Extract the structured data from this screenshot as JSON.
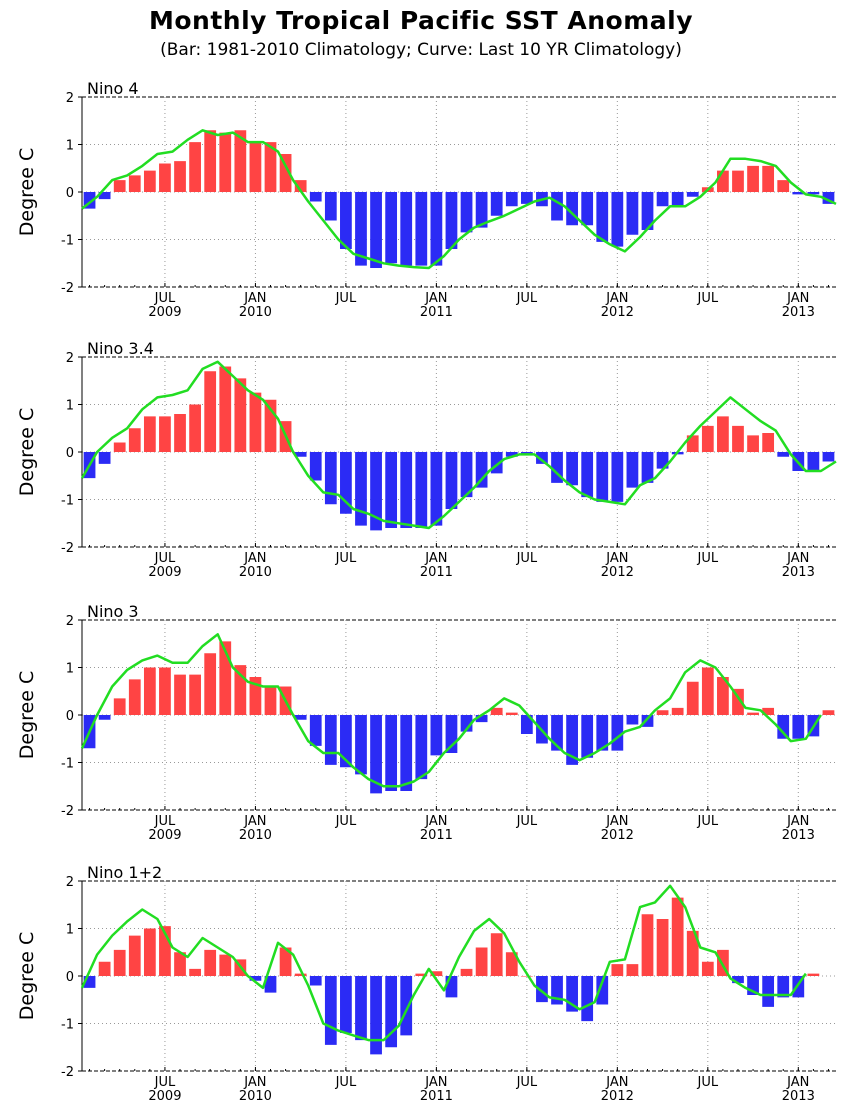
{
  "title": "Monthly Tropical Pacific SST Anomaly",
  "subtitle": "(Bar: 1981-2010 Climatology; Curve: Last 10 YR Climatology)",
  "colors": {
    "positive_bar": "#ff4444",
    "negative_bar": "#2b2bf5",
    "curve": "#22dd22",
    "grid": "#999999",
    "axis": "#000000"
  },
  "chart_data": [
    {
      "type": "bar",
      "panel_label": "Nino 4",
      "ylabel": "Degree C",
      "ylim": [
        -2,
        2
      ],
      "yticks": [
        -2,
        -1,
        0,
        1,
        2
      ],
      "grid": true,
      "x_start": "2009-02",
      "x_end": "2013-03",
      "xticks": [
        {
          "month": "2009-07",
          "label": "JUL",
          "year_label": "2009"
        },
        {
          "month": "2010-01",
          "label": "JAN",
          "year_label": "2010"
        },
        {
          "month": "2010-07",
          "label": "JUL",
          "year_label": ""
        },
        {
          "month": "2011-01",
          "label": "JAN",
          "year_label": "2011"
        },
        {
          "month": "2011-07",
          "label": "JUL",
          "year_label": ""
        },
        {
          "month": "2012-01",
          "label": "JAN",
          "year_label": "2012"
        },
        {
          "month": "2012-07",
          "label": "JUL",
          "year_label": ""
        },
        {
          "month": "2013-01",
          "label": "JAN",
          "year_label": "2013"
        }
      ],
      "series": [
        {
          "values": [
            -0.35,
            -0.15,
            0.25,
            0.35,
            0.45,
            0.6,
            0.65,
            1.05,
            1.3,
            1.25,
            1.3,
            1.05,
            1.05,
            0.8,
            0.25,
            -0.2,
            -0.6,
            -1.2,
            -1.55,
            -1.6,
            -1.5,
            -1.55,
            -1.55,
            -1.55,
            -1.2,
            -0.85,
            -0.75,
            -0.5,
            -0.3,
            -0.25,
            -0.3,
            -0.6,
            -0.7,
            -0.7,
            -1.05,
            -1.15,
            -0.9,
            -0.8,
            -0.3,
            -0.3,
            -0.1,
            0.1,
            0.45,
            0.45,
            0.55,
            0.55,
            0.25,
            -0.05,
            -0.05,
            -0.25
          ]
        },
        {
          "values": [
            -0.35,
            -0.1,
            0.25,
            0.35,
            0.55,
            0.8,
            0.85,
            1.1,
            1.3,
            1.2,
            1.25,
            1.05,
            1.05,
            0.85,
            0.25,
            -0.2,
            -0.6,
            -1.0,
            -1.3,
            -1.4,
            -1.5,
            -1.55,
            -1.58,
            -1.6,
            -1.35,
            -1.0,
            -0.75,
            -0.62,
            -0.5,
            -0.35,
            -0.2,
            -0.12,
            -0.3,
            -0.6,
            -0.9,
            -1.1,
            -1.25,
            -0.95,
            -0.6,
            -0.3,
            -0.3,
            -0.1,
            0.2,
            0.7,
            0.7,
            0.65,
            0.55,
            0.2,
            -0.05,
            -0.1,
            -0.25
          ]
        }
      ]
    },
    {
      "type": "bar",
      "panel_label": "Nino 3.4",
      "ylabel": "Degree C",
      "ylim": [
        -2,
        2
      ],
      "yticks": [
        -2,
        -1,
        0,
        1,
        2
      ],
      "grid": true,
      "x_start": "2009-02",
      "x_end": "2013-03",
      "xticks": [
        {
          "month": "2009-07",
          "label": "JUL",
          "year_label": "2009"
        },
        {
          "month": "2010-01",
          "label": "JAN",
          "year_label": "2010"
        },
        {
          "month": "2010-07",
          "label": "JUL",
          "year_label": ""
        },
        {
          "month": "2011-01",
          "label": "JAN",
          "year_label": "2011"
        },
        {
          "month": "2011-07",
          "label": "JUL",
          "year_label": ""
        },
        {
          "month": "2012-01",
          "label": "JAN",
          "year_label": "2012"
        },
        {
          "month": "2012-07",
          "label": "JUL",
          "year_label": ""
        },
        {
          "month": "2013-01",
          "label": "JAN",
          "year_label": "2013"
        }
      ],
      "series": [
        {
          "values": [
            -0.55,
            -0.25,
            0.2,
            0.5,
            0.75,
            0.75,
            0.8,
            1.0,
            1.7,
            1.8,
            1.55,
            1.25,
            1.1,
            0.65,
            -0.1,
            -0.6,
            -1.1,
            -1.3,
            -1.55,
            -1.65,
            -1.6,
            -1.6,
            -1.6,
            -1.55,
            -1.2,
            -0.95,
            -0.75,
            -0.45,
            -0.1,
            -0.05,
            -0.25,
            -0.65,
            -0.7,
            -0.95,
            -1.05,
            -1.05,
            -0.75,
            -0.65,
            -0.35,
            -0.05,
            0.35,
            0.55,
            0.75,
            0.55,
            0.35,
            0.4,
            -0.1,
            -0.4,
            -0.4,
            -0.2
          ]
        },
        {
          "values": [
            -0.55,
            0.0,
            0.3,
            0.5,
            0.9,
            1.15,
            1.2,
            1.3,
            1.75,
            1.9,
            1.6,
            1.3,
            1.1,
            0.7,
            0.0,
            -0.5,
            -0.85,
            -0.9,
            -1.2,
            -1.3,
            -1.45,
            -1.5,
            -1.55,
            -1.6,
            -1.35,
            -1.05,
            -0.75,
            -0.4,
            -0.15,
            -0.05,
            -0.05,
            -0.3,
            -0.6,
            -0.85,
            -1.0,
            -1.05,
            -1.1,
            -0.7,
            -0.55,
            -0.2,
            0.2,
            0.55,
            0.85,
            1.15,
            0.9,
            0.65,
            0.45,
            -0.05,
            -0.4,
            -0.4,
            -0.2
          ]
        }
      ]
    },
    {
      "type": "bar",
      "panel_label": "Nino 3",
      "ylabel": "Degree C",
      "ylim": [
        -2,
        2
      ],
      "yticks": [
        -2,
        -1,
        0,
        1,
        2
      ],
      "grid": true,
      "x_start": "2009-02",
      "x_end": "2013-03",
      "xticks": [
        {
          "month": "2009-07",
          "label": "JUL",
          "year_label": "2009"
        },
        {
          "month": "2010-01",
          "label": "JAN",
          "year_label": "2010"
        },
        {
          "month": "2010-07",
          "label": "JUL",
          "year_label": ""
        },
        {
          "month": "2011-01",
          "label": "JAN",
          "year_label": "2011"
        },
        {
          "month": "2011-07",
          "label": "JUL",
          "year_label": ""
        },
        {
          "month": "2012-01",
          "label": "JAN",
          "year_label": "2012"
        },
        {
          "month": "2012-07",
          "label": "JUL",
          "year_label": ""
        },
        {
          "month": "2013-01",
          "label": "JAN",
          "year_label": "2013"
        }
      ],
      "series": [
        {
          "values": [
            -0.7,
            -0.1,
            0.35,
            0.75,
            1.0,
            1.0,
            0.85,
            0.85,
            1.3,
            1.55,
            1.05,
            0.8,
            0.6,
            0.6,
            -0.1,
            -0.65,
            -1.05,
            -1.1,
            -1.25,
            -1.65,
            -1.6,
            -1.6,
            -1.35,
            -0.85,
            -0.8,
            -0.35,
            -0.15,
            0.15,
            0.05,
            -0.4,
            -0.6,
            -0.75,
            -1.05,
            -0.9,
            -0.75,
            -0.75,
            -0.2,
            -0.25,
            0.1,
            0.15,
            0.7,
            1.0,
            0.8,
            0.55,
            0.05,
            0.15,
            -0.5,
            -0.5,
            -0.45,
            0.1
          ]
        },
        {
          "values": [
            -0.7,
            0.0,
            0.6,
            0.95,
            1.15,
            1.25,
            1.1,
            1.1,
            1.45,
            1.7,
            1.0,
            0.7,
            0.6,
            0.6,
            0.0,
            -0.55,
            -0.8,
            -0.8,
            -1.1,
            -1.35,
            -1.5,
            -1.5,
            -1.4,
            -1.2,
            -0.8,
            -0.5,
            -0.1,
            0.1,
            0.35,
            0.2,
            -0.15,
            -0.5,
            -0.8,
            -0.95,
            -0.8,
            -0.6,
            -0.35,
            -0.25,
            0.1,
            0.35,
            0.9,
            1.15,
            1.0,
            0.6,
            0.15,
            0.1,
            -0.2,
            -0.55,
            -0.5,
            0.0
          ]
        }
      ]
    },
    {
      "type": "bar",
      "panel_label": "Nino 1+2",
      "ylabel": "Degree C",
      "ylim": [
        -2,
        2
      ],
      "yticks": [
        -2,
        -1,
        0,
        1,
        2
      ],
      "grid": true,
      "x_start": "2009-02",
      "x_end": "2013-03",
      "xticks": [
        {
          "month": "2009-07",
          "label": "JUL",
          "year_label": "2009"
        },
        {
          "month": "2010-01",
          "label": "JAN",
          "year_label": "2010"
        },
        {
          "month": "2010-07",
          "label": "JUL",
          "year_label": ""
        },
        {
          "month": "2011-01",
          "label": "JAN",
          "year_label": "2011"
        },
        {
          "month": "2011-07",
          "label": "JUL",
          "year_label": ""
        },
        {
          "month": "2012-01",
          "label": "JAN",
          "year_label": "2012"
        },
        {
          "month": "2012-07",
          "label": "JUL",
          "year_label": ""
        },
        {
          "month": "2013-01",
          "label": "JAN",
          "year_label": "2013"
        }
      ],
      "series": [
        {
          "values": [
            -0.25,
            0.3,
            0.55,
            0.85,
            1.0,
            1.05,
            0.5,
            0.15,
            0.55,
            0.45,
            0.35,
            -0.1,
            -0.35,
            0.6,
            0.05,
            -0.2,
            -1.45,
            -1.2,
            -1.35,
            -1.65,
            -1.5,
            -1.25,
            0.05,
            0.1,
            -0.45,
            0.15,
            0.6,
            0.9,
            0.5,
            0.0,
            -0.55,
            -0.6,
            -0.75,
            -0.95,
            -0.6,
            0.25,
            0.25,
            1.3,
            1.2,
            1.65,
            0.95,
            0.3,
            0.55,
            -0.15,
            -0.4,
            -0.65,
            -0.45,
            -0.45,
            0.05
          ]
        },
        {
          "values": [
            -0.25,
            0.45,
            0.85,
            1.15,
            1.4,
            1.2,
            0.6,
            0.4,
            0.8,
            0.6,
            0.4,
            0.0,
            -0.25,
            0.7,
            0.45,
            -0.2,
            -1.0,
            -1.15,
            -1.25,
            -1.35,
            -1.35,
            -1.05,
            -0.4,
            0.15,
            -0.3,
            0.4,
            0.95,
            1.2,
            0.9,
            0.3,
            -0.2,
            -0.45,
            -0.5,
            -0.7,
            -0.55,
            0.3,
            0.35,
            1.45,
            1.55,
            1.9,
            1.45,
            0.6,
            0.5,
            -0.05,
            -0.25,
            -0.4,
            -0.4,
            -0.4,
            0.05
          ]
        }
      ]
    }
  ]
}
